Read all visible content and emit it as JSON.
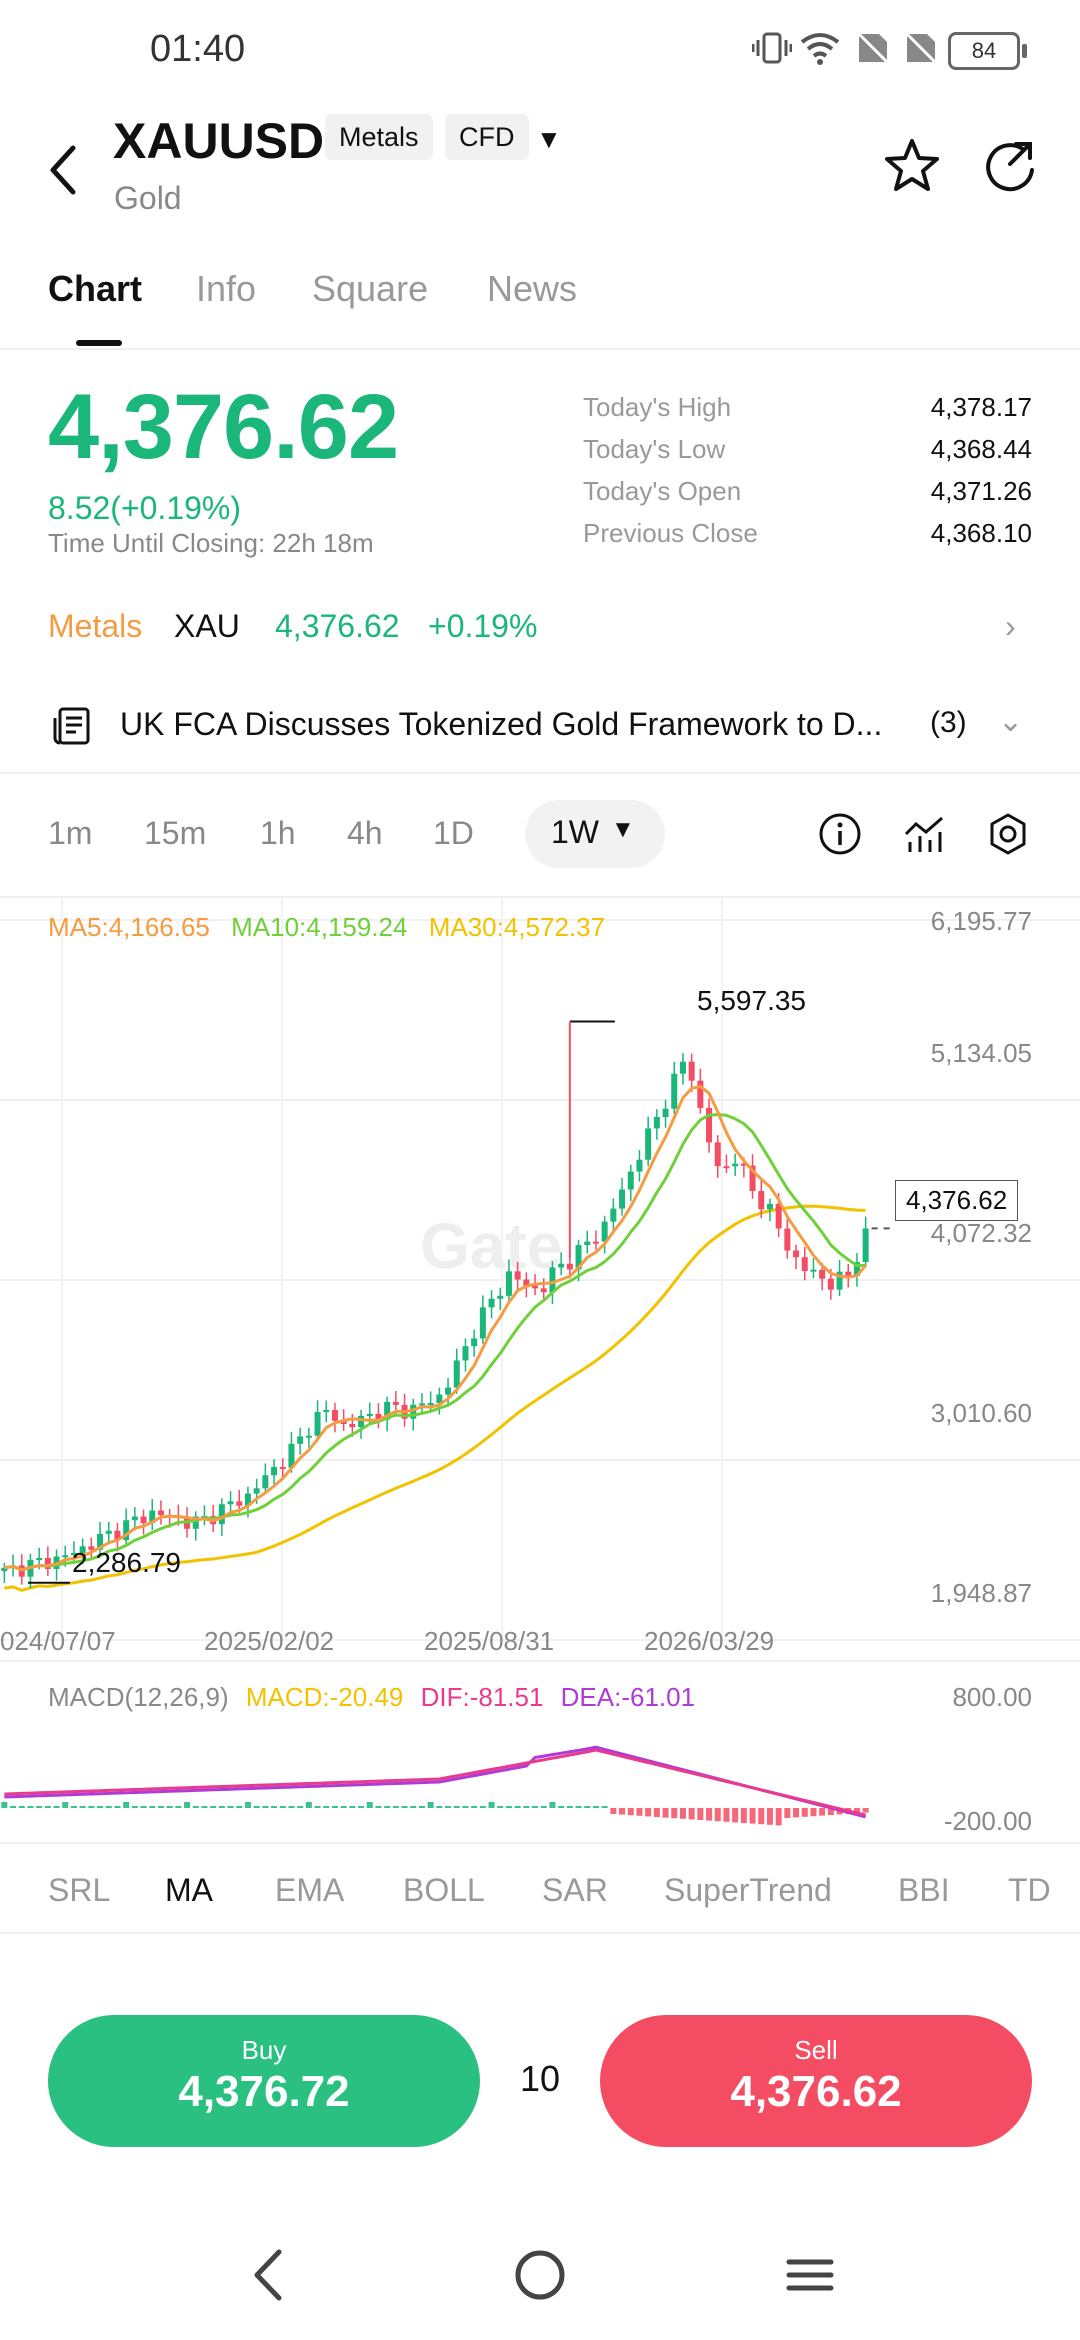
{
  "status_bar": {
    "time": "01:40",
    "battery": "84"
  },
  "header": {
    "symbol": "XAUUSD",
    "tags": [
      "Metals",
      "CFD"
    ],
    "subtitle": "Gold"
  },
  "tabs": [
    {
      "label": "Chart",
      "active": true
    },
    {
      "label": "Info",
      "active": false
    },
    {
      "label": "Square",
      "active": false
    },
    {
      "label": "News",
      "active": false
    }
  ],
  "quote": {
    "price": "4,376.62",
    "change": "8.52(+0.19%)",
    "closing": "Time Until Closing:  22h 18m",
    "stats": [
      {
        "label": "Today's High",
        "value": "4,378.17"
      },
      {
        "label": "Today's Low",
        "value": "4,368.44"
      },
      {
        "label": "Today's Open",
        "value": "4,371.26"
      },
      {
        "label": "Previous Close",
        "value": "4,368.10"
      }
    ]
  },
  "market_row": {
    "category": "Metals",
    "symbol": "XAU",
    "price": "4,376.62",
    "percent": "+0.19%"
  },
  "news": {
    "headline": "UK FCA Discusses Tokenized Gold Framework to D...",
    "count": "(3)"
  },
  "timeframes": [
    "1m",
    "15m",
    "1h",
    "4h",
    "1D"
  ],
  "timeframe_selected": "1W",
  "chart": {
    "ma_labels": [
      "MA5:4,166.65",
      "MA10:4,159.24",
      "MA30:4,572.37"
    ],
    "y_labels": [
      "6,195.77",
      "5,134.05",
      "4,072.32",
      "3,010.60",
      "1,948.87"
    ],
    "x_labels": [
      "024/07/07",
      "2025/02/02",
      "2025/08/31",
      "2026/03/29"
    ],
    "high_label": "5,597.35",
    "low_label": "2,286.79",
    "current_label": "4,376.62",
    "watermark": "Gate"
  },
  "macd": {
    "labels": [
      "MACD(12,26,9)",
      "MACD:-20.49",
      "DIF:-81.51",
      "DEA:-61.01"
    ],
    "y_labels": [
      "800.00",
      "-200.00"
    ]
  },
  "indicators": [
    {
      "label": "SRL",
      "active": false
    },
    {
      "label": "MA",
      "active": true
    },
    {
      "label": "EMA",
      "active": false
    },
    {
      "label": "BOLL",
      "active": false
    },
    {
      "label": "SAR",
      "active": false
    },
    {
      "label": "SuperTrend",
      "active": false
    },
    {
      "label": "BBI",
      "active": false
    },
    {
      "label": "TD",
      "active": false
    }
  ],
  "trade": {
    "buy_label": "Buy",
    "buy_price": "4,376.72",
    "quantity": "10",
    "sell_label": "Sell",
    "sell_price": "4,376.62"
  },
  "colors": {
    "up": "#1bb67a",
    "down": "#f44c62",
    "ma5": "#f59b42",
    "ma10": "#6fd03a",
    "ma30": "#f2c200",
    "dif": "#e83a8f",
    "dea": "#b03ad6"
  },
  "chart_data": {
    "type": "candlestick",
    "title": "",
    "ylim": [
      1948.87,
      6195.77
    ],
    "y_ticks": [
      6195.77,
      5134.05,
      4072.32,
      3010.6,
      1948.87
    ],
    "x_ticks": [
      "024/07/07",
      "2025/02/02",
      "2025/08/31",
      "2026/03/29"
    ],
    "series": [
      {
        "name": "MA5",
        "last": 4166.65
      },
      {
        "name": "MA10",
        "last": 4159.24
      },
      {
        "name": "MA30",
        "last": 4572.37
      }
    ],
    "annotations": {
      "high": 5597.35,
      "low": 2286.79,
      "current": 4376.62
    },
    "close_path": [
      2350,
      2380,
      2400,
      2420,
      2450,
      2500,
      2550,
      2600,
      2650,
      2700,
      2680,
      2650,
      2640,
      2700,
      2750,
      2800,
      2900,
      3000,
      3100,
      3250,
      3300,
      3200,
      3250,
      3300,
      3320,
      3300,
      3350,
      3400,
      3600,
      3800,
      3950,
      4100,
      4050,
      4000,
      4150,
      4200,
      4300,
      4400,
      4600,
      4800,
      5000,
      5200,
      5400,
      5000,
      4700,
      4800,
      4600,
      4500,
      4300,
      4150,
      4100,
      4050,
      4100,
      4376
    ]
  }
}
